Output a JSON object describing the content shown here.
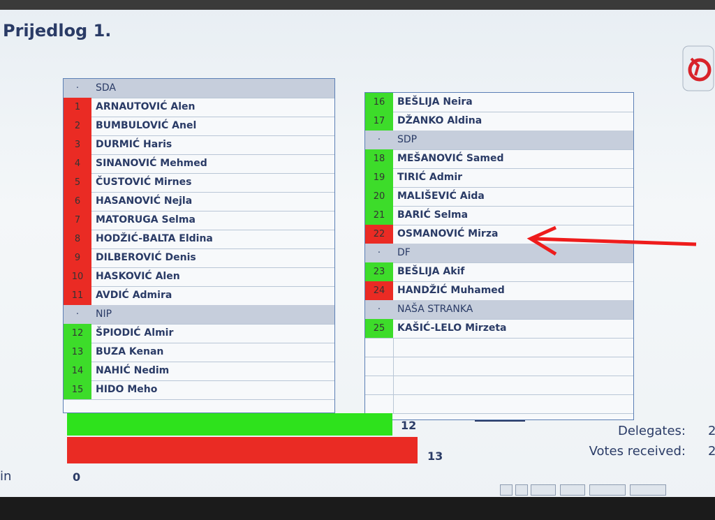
{
  "header": {
    "title": "Prijedlog 1."
  },
  "left_list": {
    "groups": [
      {
        "name": "SDA",
        "marker": "·",
        "members": [
          {
            "number": 1,
            "name": "ARNAUTOVIĆ Alen",
            "vote": "no"
          },
          {
            "number": 2,
            "name": "BUMBULOVIĆ Anel",
            "vote": "no"
          },
          {
            "number": 3,
            "name": "DURMIĆ Haris",
            "vote": "no"
          },
          {
            "number": 4,
            "name": "SINANOVIĆ Mehmed",
            "vote": "no"
          },
          {
            "number": 5,
            "name": "ČUSTOVIĆ Mirnes",
            "vote": "no"
          },
          {
            "number": 6,
            "name": "HASANOVIĆ Nejla",
            "vote": "no"
          },
          {
            "number": 7,
            "name": "MATORUGA Selma",
            "vote": "no"
          },
          {
            "number": 8,
            "name": "HODŽIĆ-BALTA Eldina",
            "vote": "no"
          },
          {
            "number": 9,
            "name": "DILBEROVIĆ Denis",
            "vote": "no"
          },
          {
            "number": 10,
            "name": "HASKOVIĆ Alen",
            "vote": "no"
          },
          {
            "number": 11,
            "name": "AVDIĆ Admira",
            "vote": "no"
          }
        ]
      },
      {
        "name": "NIP",
        "marker": "·",
        "members": [
          {
            "number": 12,
            "name": "ŠPIODIĆ Almir",
            "vote": "yes"
          },
          {
            "number": 13,
            "name": "BUZA Kenan",
            "vote": "yes"
          },
          {
            "number": 14,
            "name": "NAHIĆ Nedim",
            "vote": "yes"
          },
          {
            "number": 15,
            "name": "HIDO Meho",
            "vote": "yes"
          }
        ]
      }
    ]
  },
  "right_list": {
    "groups": [
      {
        "members": [
          {
            "number": 16,
            "name": "BEŠLIJA Neira",
            "vote": "yes"
          },
          {
            "number": 17,
            "name": "DŽANKO Aldina",
            "vote": "yes"
          }
        ]
      },
      {
        "name": "SDP",
        "marker": "·",
        "members": [
          {
            "number": 18,
            "name": "MEŠANOVIĆ Samed",
            "vote": "yes"
          },
          {
            "number": 19,
            "name": "TIRIĆ Admir",
            "vote": "yes"
          },
          {
            "number": 20,
            "name": "MALIŠEVIĆ Aida",
            "vote": "yes"
          },
          {
            "number": 21,
            "name": "BARIĆ Selma",
            "vote": "yes"
          },
          {
            "number": 22,
            "name": "OSMANOVIĆ Mirza",
            "vote": "no"
          }
        ]
      },
      {
        "name": "DF",
        "marker": "·",
        "members": [
          {
            "number": 23,
            "name": "BEŠLIJA Akif",
            "vote": "yes"
          },
          {
            "number": 24,
            "name": "HANDŽIĆ Muhamed",
            "vote": "no"
          }
        ]
      },
      {
        "name": "NAŠA STRANKA",
        "marker": "·",
        "members": [
          {
            "number": 25,
            "name": "KAŠIĆ-LELO Mirzeta",
            "vote": "yes"
          }
        ]
      }
    ]
  },
  "summary": {
    "yes": 12,
    "no": 13,
    "abstain_label": "in",
    "abstain": 0,
    "delegates_label": "Delegates:",
    "delegates": 2,
    "votes_received_label": "Votes received:",
    "votes_received": 2
  }
}
